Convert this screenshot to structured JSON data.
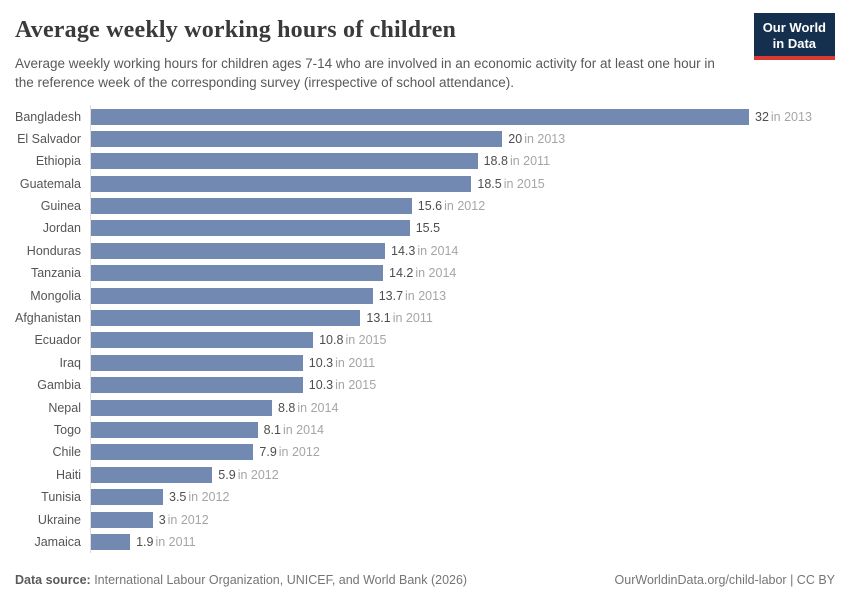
{
  "header": {
    "title": "Average weekly working hours of children",
    "subtitle": "Average weekly working hours for children ages 7-14 who are involved in an economic activity for at least one hour in the reference week of the corresponding survey (irrespective of school attendance).",
    "logo_line1": "Our World",
    "logo_line2": "in Data",
    "logo_bg_color": "#15304f",
    "logo_stripe_color": "#d93a34"
  },
  "chart_data": {
    "type": "bar",
    "orientation": "horizontal",
    "title": "Average weekly working hours of children",
    "xlabel": "",
    "ylabel": "",
    "xlim": [
      0,
      32
    ],
    "grid": false,
    "legend": false,
    "bar_color": "#7289b2",
    "categories": [
      "Bangladesh",
      "El Salvador",
      "Ethiopia",
      "Guatemala",
      "Guinea",
      "Jordan",
      "Honduras",
      "Tanzania",
      "Mongolia",
      "Afghanistan",
      "Ecuador",
      "Iraq",
      "Gambia",
      "Nepal",
      "Togo",
      "Chile",
      "Haiti",
      "Tunisia",
      "Ukraine",
      "Jamaica"
    ],
    "values": [
      32,
      20,
      18.8,
      18.5,
      15.6,
      15.5,
      14.3,
      14.2,
      13.7,
      13.1,
      10.8,
      10.3,
      10.3,
      8.8,
      8.1,
      7.9,
      5.9,
      3.5,
      3,
      1.9
    ],
    "years": [
      "2013",
      "2013",
      "2011",
      "2015",
      "2012",
      "",
      "2014",
      "2014",
      "2013",
      "2011",
      "2015",
      "2011",
      "2015",
      "2014",
      "2014",
      "2012",
      "2012",
      "2012",
      "2012",
      "2011"
    ],
    "year_prefix": "in "
  },
  "footer": {
    "source_label": "Data source:",
    "source_text": " International Labour Organization, UNICEF, and World Bank (2026)",
    "right_text": "OurWorldinData.org/child-labor | CC BY"
  }
}
